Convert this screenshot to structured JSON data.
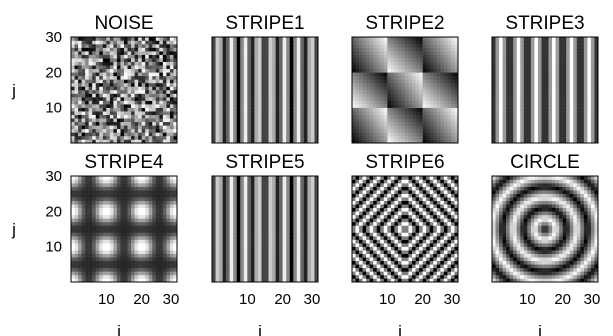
{
  "chart_data": {
    "type": "heatmap",
    "grid_size": 30,
    "colormap": "gray",
    "shared_axes": {
      "xlabel": "i",
      "ylabel": "j",
      "xticks": [
        10,
        20,
        30
      ],
      "yticks": [
        10,
        20,
        30
      ],
      "xlim": [
        0,
        30
      ],
      "ylim": [
        0,
        30
      ]
    },
    "layout": {
      "rows": 2,
      "cols": 4
    },
    "panels": [
      {
        "title": "NOISE",
        "pattern": "noise"
      },
      {
        "title": "STRIPE1",
        "pattern": "vertical-stripes",
        "period": 3.75
      },
      {
        "title": "STRIPE2",
        "pattern": "sawtooth-checker",
        "period": 10
      },
      {
        "title": "STRIPE3",
        "pattern": "vertical-stripes",
        "period": 5
      },
      {
        "title": "STRIPE4",
        "pattern": "blob-grid",
        "period": 10
      },
      {
        "title": "STRIPE5",
        "pattern": "vertical-stripes",
        "period": 3.75
      },
      {
        "title": "STRIPE6",
        "pattern": "diamond-rings",
        "center": [
          15,
          15
        ],
        "period": 4
      },
      {
        "title": "CIRCLE",
        "pattern": "concentric-rings",
        "center": [
          15,
          15
        ],
        "period": 6
      }
    ]
  }
}
